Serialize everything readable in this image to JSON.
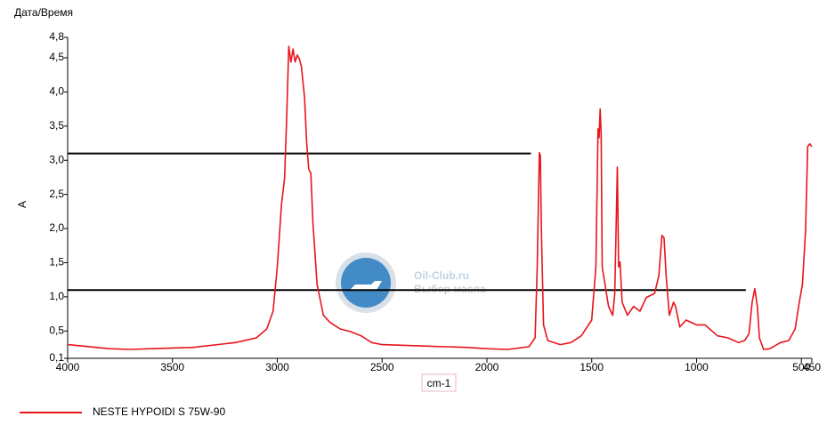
{
  "chart_data": {
    "type": "line",
    "top_label": "Дата/Время",
    "xlabel": "cm-1",
    "ylabel": "A",
    "watermark": "Oil-Club.ru",
    "watermark_subtitle": "Выбор масла",
    "xlim": [
      4000,
      450
    ],
    "ylim": [
      0.1,
      4.8
    ],
    "xticks": [
      4000,
      3500,
      3000,
      2500,
      2000,
      1500,
      1000,
      500,
      450
    ],
    "yticks": [
      {
        "value": 0.1,
        "label": "0,1"
      },
      {
        "value": 0.5,
        "label": "0,5"
      },
      {
        "value": 1.0,
        "label": "1,0"
      },
      {
        "value": 1.5,
        "label": "1,5"
      },
      {
        "value": 2.0,
        "label": "2,0"
      },
      {
        "value": 2.5,
        "label": "2,5"
      },
      {
        "value": 3.0,
        "label": "3,0"
      },
      {
        "value": 3.5,
        "label": "3,5"
      },
      {
        "value": 4.0,
        "label": "4,0"
      },
      {
        "value": 4.5,
        "label": "4,5"
      },
      {
        "value": 4.8,
        "label": "4,8"
      }
    ],
    "reference_lines": [
      {
        "y": 3.1,
        "x": [
          4000,
          1790
        ],
        "color": "#000000"
      },
      {
        "y": 1.1,
        "x": [
          4000,
          765
        ],
        "color": "#000000"
      }
    ],
    "series": [
      {
        "name": "NESTE HYPOIDI S 75W-90",
        "color": "#e8141b",
        "x": [
          4000,
          3800,
          3700,
          3600,
          3400,
          3200,
          3100,
          3050,
          3020,
          3000,
          2980,
          2965,
          2955,
          2945,
          2935,
          2925,
          2915,
          2905,
          2895,
          2885,
          2870,
          2860,
          2850,
          2840,
          2830,
          2810,
          2780,
          2750,
          2730,
          2700,
          2650,
          2600,
          2550,
          2500,
          2300,
          2100,
          2000,
          1900,
          1800,
          1770,
          1760,
          1750,
          1745,
          1740,
          1730,
          1710,
          1650,
          1600,
          1550,
          1500,
          1480,
          1470,
          1465,
          1460,
          1455,
          1450,
          1420,
          1400,
          1390,
          1378,
          1372,
          1365,
          1355,
          1330,
          1300,
          1270,
          1240,
          1200,
          1180,
          1165,
          1155,
          1145,
          1130,
          1110,
          1100,
          1080,
          1050,
          1000,
          960,
          900,
          850,
          800,
          770,
          750,
          735,
          722,
          710,
          700,
          680,
          650,
          600,
          560,
          530,
          510,
          495,
          480,
          470,
          460,
          450
        ],
        "values": [
          0.3,
          0.24,
          0.23,
          0.24,
          0.26,
          0.33,
          0.4,
          0.53,
          0.79,
          1.44,
          2.35,
          2.74,
          3.65,
          4.67,
          4.44,
          4.63,
          4.44,
          4.54,
          4.49,
          4.37,
          3.92,
          3.26,
          2.87,
          2.81,
          2.09,
          1.18,
          0.73,
          0.63,
          0.59,
          0.53,
          0.49,
          0.43,
          0.33,
          0.3,
          0.28,
          0.26,
          0.24,
          0.23,
          0.27,
          0.4,
          1.44,
          3.11,
          3.07,
          1.96,
          0.59,
          0.36,
          0.3,
          0.33,
          0.43,
          0.66,
          1.44,
          3.46,
          3.33,
          3.75,
          3.39,
          1.44,
          0.86,
          0.73,
          1.05,
          2.9,
          1.44,
          1.51,
          0.92,
          0.73,
          0.86,
          0.79,
          0.99,
          1.05,
          1.31,
          1.9,
          1.86,
          1.31,
          0.73,
          0.92,
          0.86,
          0.56,
          0.66,
          0.59,
          0.59,
          0.43,
          0.4,
          0.33,
          0.36,
          0.46,
          0.92,
          1.12,
          0.86,
          0.4,
          0.23,
          0.24,
          0.33,
          0.36,
          0.53,
          0.92,
          1.18,
          1.96,
          3.2,
          3.24,
          3.2
        ]
      }
    ]
  }
}
